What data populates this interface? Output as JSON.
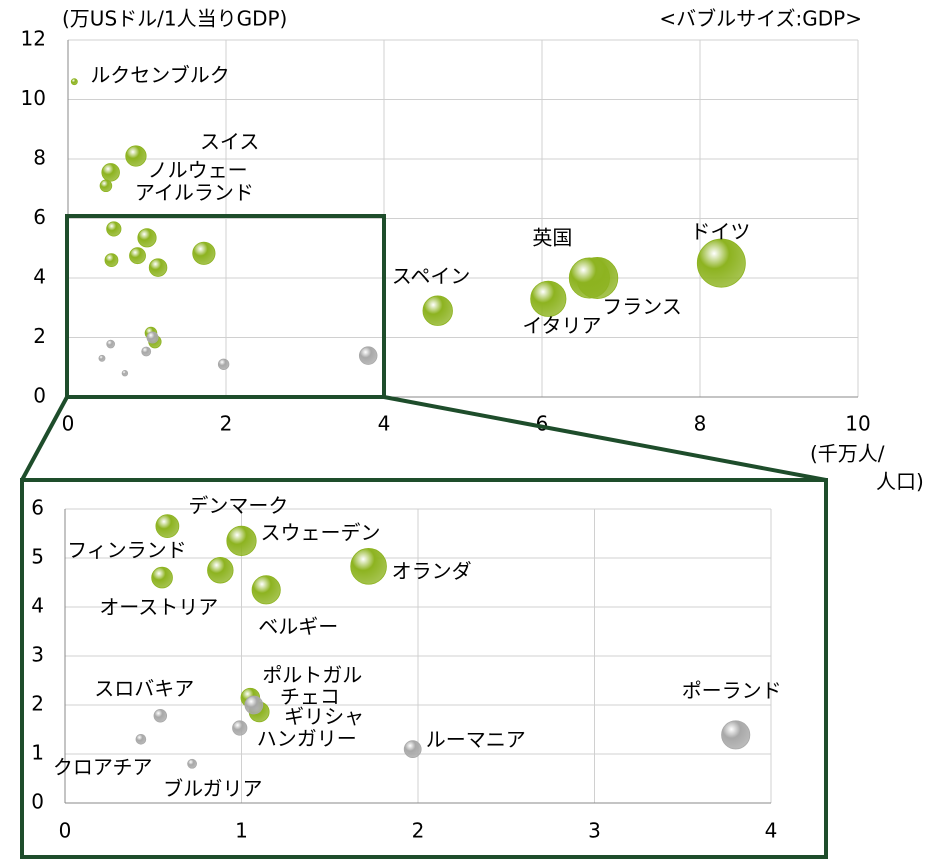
{
  "chart_data": [
    {
      "type": "bubble",
      "ylabel": "(万USドル/1人当りGDP)",
      "annotation": "<バブルサイズ:GDP>",
      "xlabel_lines": [
        "(千万人/",
        "人口)"
      ],
      "labels": [
        "ルクセンブルク",
        "スイス",
        "ノルウェー",
        "アイルランド",
        "スペイン",
        "イタリア",
        "英国",
        "フランス",
        "ドイツ",
        null,
        null,
        null,
        null,
        null,
        null,
        null,
        null,
        null,
        null,
        null,
        null,
        null,
        null,
        null
      ],
      "x": [
        0.08,
        0.86,
        0.54,
        0.48,
        4.68,
        6.08,
        6.6,
        6.7,
        8.27,
        0.58,
        0.55,
        1.0,
        0.88,
        1.72,
        1.14,
        0.54,
        1.05,
        1.07,
        1.1,
        0.99,
        0.43,
        0.72,
        1.97,
        3.8
      ],
      "values": [
        10.6,
        8.1,
        7.55,
        7.1,
        2.9,
        3.3,
        4.0,
        4.0,
        4.5,
        5.65,
        4.6,
        5.35,
        4.75,
        4.83,
        4.35,
        1.78,
        2.15,
        2.0,
        1.86,
        1.53,
        1.3,
        0.8,
        1.1,
        1.39
      ],
      "sizes": [
        0.06,
        0.67,
        0.5,
        0.22,
        1.4,
        2.0,
        2.6,
        2.7,
        3.7,
        0.33,
        0.27,
        0.54,
        0.41,
        0.8,
        0.5,
        0.1,
        0.22,
        0.2,
        0.25,
        0.13,
        0.06,
        0.05,
        0.18,
        0.5
      ],
      "colors": [
        "#8db320",
        "#8db320",
        "#8db320",
        "#8db320",
        "#8db320",
        "#8db320",
        "#8db320",
        "#8db320",
        "#8db320",
        "#8db320",
        "#8db320",
        "#8db320",
        "#8db320",
        "#8db320",
        "#8db320",
        "#a8a8a8",
        "#8db320",
        "#a8a8a8",
        "#8db320",
        "#a8a8a8",
        "#a8a8a8",
        "#a8a8a8",
        "#a8a8a8",
        "#a8a8a8"
      ],
      "xlim": [
        0,
        10
      ],
      "ylim": [
        0,
        12
      ],
      "xticks": [
        0,
        2,
        4,
        6,
        8,
        10
      ],
      "yticks": [
        0,
        2,
        4,
        6,
        8,
        10,
        12
      ],
      "grid": true
    },
    {
      "type": "bubble",
      "labels": [
        "デンマーク",
        "フィンランド",
        "スウェーデン",
        "オーストリア",
        "オランダ",
        "ベルギー",
        "スロバキア",
        "ポルトガル",
        "チェコ",
        "ギリシャ",
        "ハンガリー",
        "クロアチア",
        "ブルガリア",
        "ルーマニア",
        "ポーランド"
      ],
      "x": [
        0.58,
        0.55,
        1.0,
        0.88,
        1.72,
        1.14,
        0.54,
        1.05,
        1.07,
        1.1,
        0.99,
        0.43,
        0.72,
        1.97,
        3.8
      ],
      "values": [
        5.65,
        4.6,
        5.35,
        4.75,
        4.83,
        4.35,
        1.78,
        2.15,
        2.0,
        1.86,
        1.53,
        1.3,
        0.8,
        1.1,
        1.39
      ],
      "sizes": [
        0.33,
        0.27,
        0.54,
        0.41,
        0.8,
        0.5,
        0.1,
        0.22,
        0.2,
        0.25,
        0.13,
        0.06,
        0.05,
        0.18,
        0.5
      ],
      "colors": [
        "#8db320",
        "#8db320",
        "#8db320",
        "#8db320",
        "#8db320",
        "#8db320",
        "#a8a8a8",
        "#8db320",
        "#a8a8a8",
        "#8db320",
        "#a8a8a8",
        "#a8a8a8",
        "#a8a8a8",
        "#a8a8a8",
        "#a8a8a8"
      ],
      "xlim": [
        0,
        4
      ],
      "ylim": [
        0,
        6
      ],
      "xticks": [
        0,
        1,
        2,
        3,
        4
      ],
      "yticks": [
        0,
        1,
        2,
        3,
        4,
        5,
        6
      ],
      "grid": true
    }
  ]
}
